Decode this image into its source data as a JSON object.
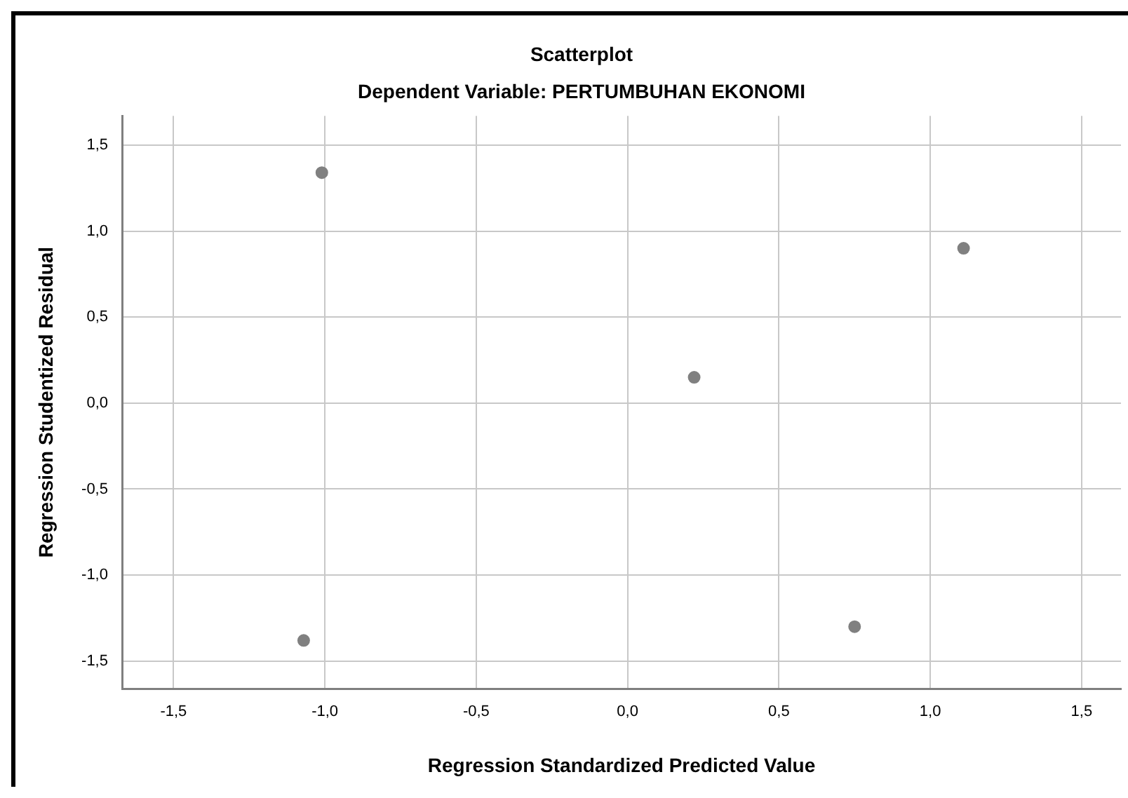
{
  "chart_data": {
    "type": "scatter",
    "title": "Scatterplot",
    "subtitle": "Dependent Variable: PERTUMBUHAN EKONOMI",
    "xlabel": "Regression Standardized Predicted Value",
    "ylabel": "Regression Studentized Residual",
    "x": [
      -1.01,
      1.11,
      0.22,
      -1.07,
      0.75
    ],
    "series": [
      {
        "color": "#808080",
        "values": [
          1.34,
          0.9,
          0.15,
          -1.38,
          -1.3
        ]
      }
    ],
    "xlim": [
      -1.67,
      1.63
    ],
    "ylim": [
      -1.66,
      1.67
    ],
    "xticks": [
      {
        "value": -1.5,
        "label": "-1,5"
      },
      {
        "value": -1,
        "label": "-1,0"
      },
      {
        "value": -0.5,
        "label": "-0,5"
      },
      {
        "value": 0,
        "label": "0,0"
      },
      {
        "value": 0.5,
        "label": "0,5"
      },
      {
        "value": 1,
        "label": "1,0"
      },
      {
        "value": 1.5,
        "label": "1,5"
      }
    ],
    "yticks": [
      {
        "value": -1.5,
        "label": "-1,5"
      },
      {
        "value": -1,
        "label": "-1,0"
      },
      {
        "value": -0.5,
        "label": "-0,5"
      },
      {
        "value": 0,
        "label": "0,0"
      },
      {
        "value": 0.5,
        "label": "0,5"
      },
      {
        "value": 1,
        "label": "1,0"
      },
      {
        "value": 1.5,
        "label": "1,5"
      }
    ],
    "grid": true,
    "legend": false,
    "marker": "circle"
  }
}
